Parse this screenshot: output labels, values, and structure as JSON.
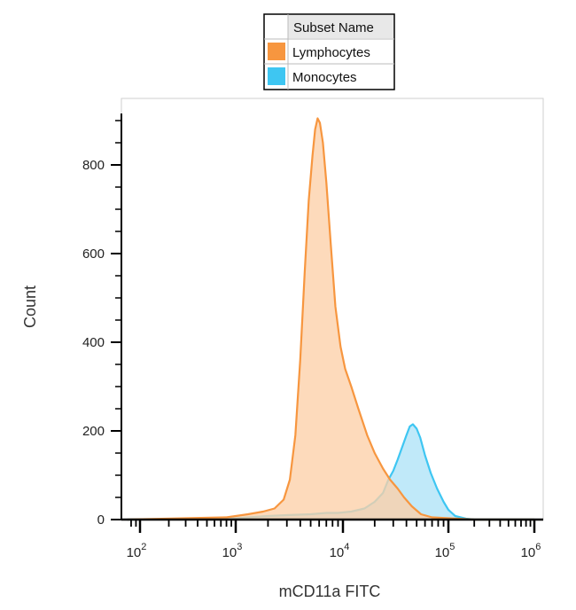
{
  "chart_data": {
    "type": "area",
    "title": "",
    "xlabel": "mCD11a FITC",
    "ylabel": "Count",
    "x_scale": "biexponential",
    "ylim": [
      0,
      950
    ],
    "y_ticks": [
      0,
      200,
      400,
      600,
      800
    ],
    "y_tick_labels": [
      "0",
      "200",
      "400",
      "600",
      "800"
    ],
    "x_ticks": [
      100,
      1000,
      10000,
      100000,
      1000000
    ],
    "x_tick_labels": [
      {
        "base": "10",
        "exp": "2"
      },
      {
        "base": "10",
        "exp": "3"
      },
      {
        "base": "10",
        "exp": "4"
      },
      {
        "base": "10",
        "exp": "5"
      },
      {
        "base": "10",
        "exp": "6"
      }
    ],
    "legend": {
      "header": "Subset Name",
      "placement": "top-center",
      "entries": [
        "Lymphocytes",
        "Monocytes"
      ]
    },
    "grid": false,
    "series": [
      {
        "name": "Lymphocytes",
        "color": "#f7963f",
        "fill": "#fdd0a8",
        "points": [
          [
            60,
            0
          ],
          [
            300,
            3
          ],
          [
            800,
            5
          ],
          [
            1000,
            8
          ],
          [
            1300,
            12
          ],
          [
            1800,
            18
          ],
          [
            2300,
            25
          ],
          [
            2800,
            45
          ],
          [
            3200,
            90
          ],
          [
            3600,
            190
          ],
          [
            4000,
            360
          ],
          [
            4400,
            560
          ],
          [
            4800,
            720
          ],
          [
            5200,
            820
          ],
          [
            5500,
            880
          ],
          [
            5800,
            905
          ],
          [
            6100,
            895
          ],
          [
            6500,
            850
          ],
          [
            7000,
            760
          ],
          [
            7700,
            620
          ],
          [
            8500,
            480
          ],
          [
            9500,
            390
          ],
          [
            10500,
            340
          ],
          [
            12000,
            300
          ],
          [
            14000,
            250
          ],
          [
            17000,
            190
          ],
          [
            20000,
            150
          ],
          [
            24000,
            115
          ],
          [
            28000,
            90
          ],
          [
            33000,
            70
          ],
          [
            38000,
            50
          ],
          [
            45000,
            30
          ],
          [
            55000,
            12
          ],
          [
            70000,
            5
          ],
          [
            100000,
            3
          ],
          [
            200000,
            0
          ],
          [
            1000000,
            0
          ]
        ]
      },
      {
        "name": "Monocytes",
        "color": "#3ec6f2",
        "fill": "#bde8f9",
        "points": [
          [
            60,
            0
          ],
          [
            500,
            1
          ],
          [
            1000,
            3
          ],
          [
            1300,
            5
          ],
          [
            2000,
            8
          ],
          [
            3000,
            10
          ],
          [
            5000,
            12
          ],
          [
            7000,
            15
          ],
          [
            9000,
            15
          ],
          [
            12000,
            18
          ],
          [
            16000,
            25
          ],
          [
            20000,
            40
          ],
          [
            24000,
            60
          ],
          [
            27000,
            90
          ],
          [
            30000,
            110
          ],
          [
            33000,
            135
          ],
          [
            36000,
            160
          ],
          [
            40000,
            190
          ],
          [
            43000,
            210
          ],
          [
            46000,
            215
          ],
          [
            50000,
            205
          ],
          [
            54000,
            185
          ],
          [
            60000,
            145
          ],
          [
            68000,
            105
          ],
          [
            78000,
            70
          ],
          [
            90000,
            40
          ],
          [
            100000,
            22
          ],
          [
            120000,
            8
          ],
          [
            160000,
            2
          ],
          [
            200000,
            0
          ],
          [
            1000000,
            0
          ]
        ]
      }
    ]
  }
}
